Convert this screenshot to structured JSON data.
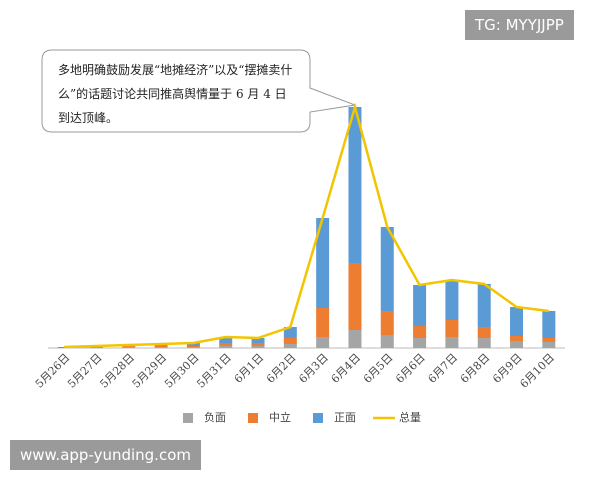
{
  "chart_data": {
    "type": "bar-line",
    "annotation": "多地明确鼓励发展“地摊经济”以及“摆摊卖什么”的话题讨论共同推高舆情量于 6 月 4 日到达顶峰。",
    "categories": [
      "5月26日",
      "5月27日",
      "5月28日",
      "5月29日",
      "5月30日",
      "5月31日",
      "6月1日",
      "6月2日",
      "6月3日",
      "6月4日",
      "6月5日",
      "6月6日",
      "6月7日",
      "6月8日",
      "6月9日",
      "6月10日"
    ],
    "series": [
      {
        "name": "负面",
        "color": "#a5a5a5",
        "kind": "bar",
        "values": [
          0,
          0,
          1,
          1,
          1,
          2,
          2,
          4,
          11,
          18,
          13,
          10,
          11,
          10,
          7,
          6
        ]
      },
      {
        "name": "中立",
        "color": "#ed7d31",
        "kind": "bar",
        "values": [
          0,
          1,
          1,
          1,
          1,
          3,
          3,
          6,
          29,
          67,
          24,
          12,
          17,
          11,
          5,
          4
        ]
      },
      {
        "name": "正面",
        "color": "#5b9bd5",
        "kind": "bar",
        "values": [
          1,
          1,
          1,
          2,
          3,
          6,
          5,
          11,
          90,
          156,
          84,
          41,
          40,
          43,
          29,
          27
        ]
      },
      {
        "name": "总量",
        "color": "#f2c500",
        "kind": "line",
        "values": [
          1,
          2,
          3,
          4,
          5,
          11,
          10,
          21,
          130,
          241,
          121,
          63,
          68,
          64,
          41,
          37
        ]
      }
    ],
    "ylim": [
      0,
      250
    ],
    "watermarks": [
      "TG: MYYJJPP",
      "www.app-yunding.com"
    ]
  }
}
